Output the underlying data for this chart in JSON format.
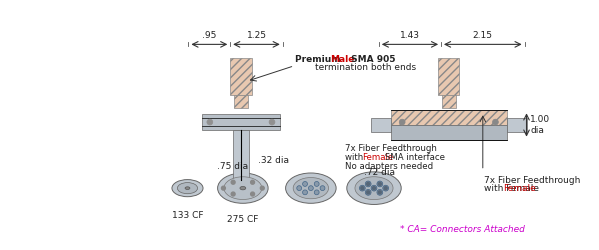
{
  "bg_color": "#ffffff",
  "dim_color": "#222222",
  "hatch_color": "#c8a080",
  "steel_color": "#b0b8c0",
  "steel_dark": "#808898",
  "flange_color": "#c0c8d0",
  "annotation_color": "#111111",
  "red_color": "#cc0000",
  "magenta_color": "#cc00cc",
  "dim1_left": ".95",
  "dim1_right": "1.25",
  "dim2_left": "1.43",
  "dim2_right": "2.15",
  "dim_dia1": ".32 dia",
  "dim_dia2": ".75 dia",
  "dim_dia3": ".72 dia",
  "dim_dia4": "1.00\ndia",
  "label_133cf": "133 CF",
  "label_275cf": "275 CF",
  "text_premium": "Premium ",
  "text_male": "Male",
  "text_sma905": " SMA 905",
  "text_term": "termination both ends",
  "text_7x": "7x Fiber Feedthrough",
  "text_female": "Female",
  "text_sma": " SMA interface",
  "text_noadapt": "No adapters needed",
  "text_ca": "* CA= Connectors Attached"
}
